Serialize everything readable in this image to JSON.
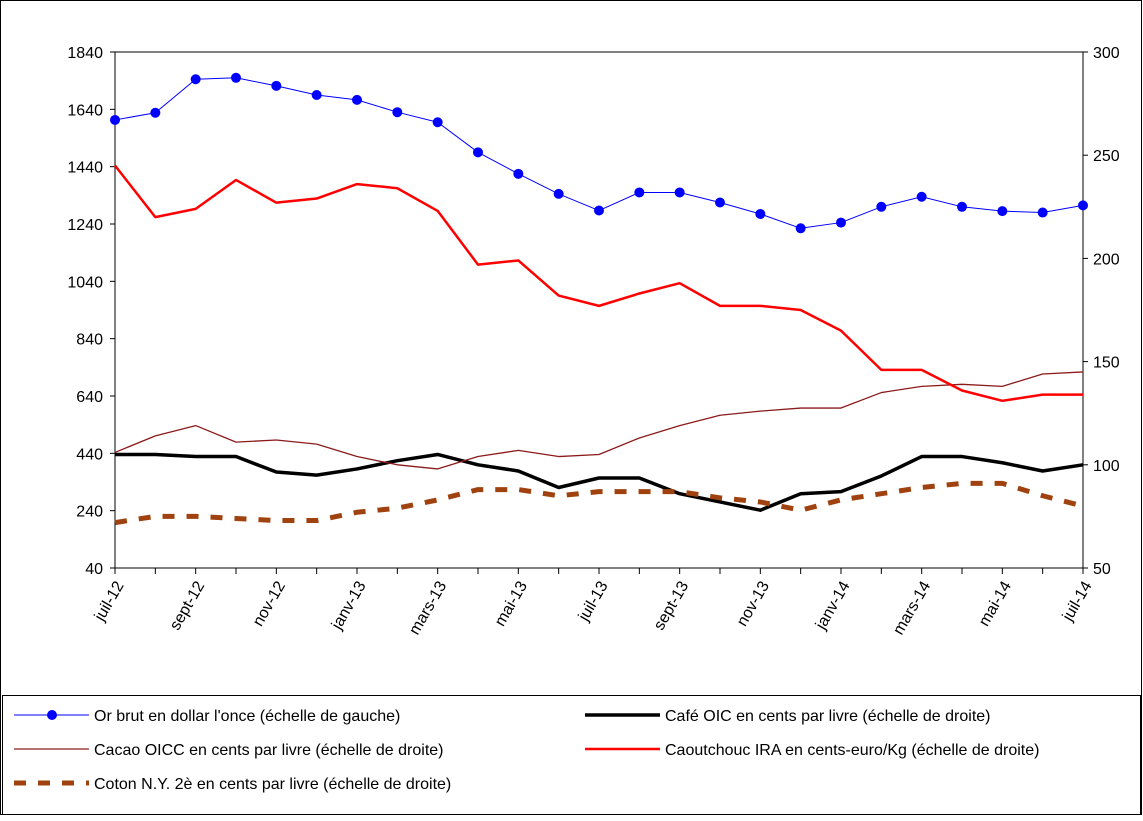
{
  "chart_data": {
    "type": "line",
    "categories": [
      "juil-12",
      null,
      "sept-12",
      null,
      "nov-12",
      null,
      "janv-13",
      null,
      "mars-13",
      null,
      "mai-13",
      null,
      "juil-13",
      null,
      "sept-13",
      null,
      "nov-13",
      null,
      "janv-14",
      null,
      "mars-14",
      null,
      "mai-14",
      null,
      "juil-14"
    ],
    "ylim": [
      40,
      1840
    ],
    "yticks": [
      40,
      240,
      440,
      640,
      840,
      1040,
      1240,
      1440,
      1640,
      1840
    ],
    "y2lim": [
      50,
      300
    ],
    "y2ticks": [
      50,
      100,
      150,
      200,
      250,
      300
    ],
    "series": [
      {
        "name": "Or brut en dollar l'once (échelle de gauche)",
        "color": "#0000ff",
        "marker": "circle",
        "width": 1,
        "values": [
          1603,
          1628,
          1745,
          1750,
          1722,
          1690,
          1673,
          1630,
          1595,
          1490,
          1415,
          1345,
          1287,
          1350,
          1350,
          1315,
          1275,
          1225,
          1245,
          1300,
          1335,
          1300,
          1285,
          1280,
          1305
        ]
      },
      {
        "name": "Café  OIC en cents par livre (échelle de droite)",
        "color": "#000000",
        "axis": "y2",
        "width": 3.5,
        "values": [
          105,
          105,
          104,
          104,
          96.5,
          95,
          98,
          102,
          105,
          100,
          97,
          89,
          93.6,
          93.6,
          86,
          82,
          78,
          86,
          87,
          94.6,
          104,
          104,
          101,
          97,
          100
        ]
      },
      {
        "name": "Cacao OICC en cents par livre (échelle de droite)",
        "color": "#8b1a1a",
        "axis": "y2",
        "width": 1.3,
        "values": [
          106,
          114,
          119,
          111,
          112,
          110,
          104,
          100,
          98,
          104,
          107,
          104,
          105,
          113,
          119,
          124,
          126,
          127.5,
          127.5,
          135,
          138,
          139,
          138,
          144,
          145
        ]
      },
      {
        "name": "Caoutchouc IRA en cents-euro/Kg (échelle de droite)",
        "color": "#ff0000",
        "axis": "y2",
        "width": 2.5,
        "values": [
          245,
          220,
          224,
          238,
          227,
          229,
          236,
          234,
          223,
          197,
          199,
          182,
          177,
          183,
          188,
          177,
          177,
          175,
          165,
          146,
          146,
          136,
          131,
          134,
          134
        ]
      },
      {
        "name": "Coton N.Y. 2è en cents par livre (échelle de droite)",
        "color": "#a0420f",
        "axis": "y2",
        "width": 5,
        "dash": true,
        "values": [
          72,
          75,
          75,
          74,
          73,
          73,
          77,
          79,
          83,
          88,
          88,
          85,
          87,
          87,
          87,
          84,
          82,
          78,
          83,
          86,
          89,
          91,
          91,
          85,
          80
        ]
      }
    ]
  }
}
